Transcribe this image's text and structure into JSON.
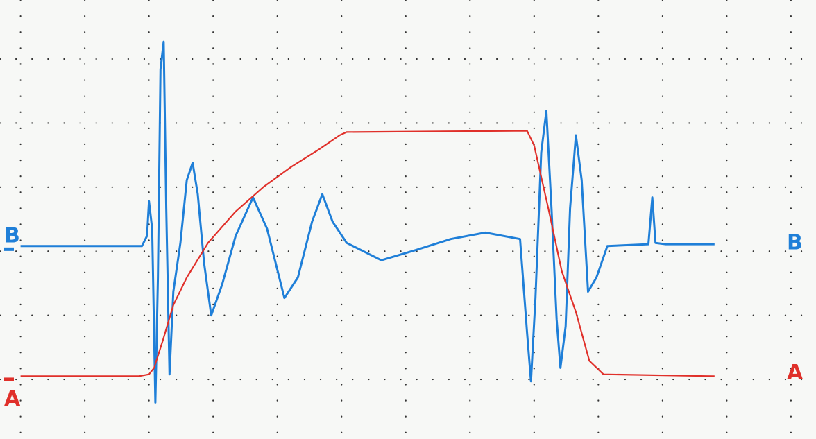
{
  "chart_data": {
    "type": "line",
    "xlim": [
      -0.32,
      12.39
    ],
    "ylim": [
      -0.93,
      5.92
    ],
    "xticks": [
      0,
      1,
      2,
      3,
      4,
      5,
      6,
      7,
      8,
      9,
      10,
      11,
      12
    ],
    "yticks": [
      0,
      1,
      2,
      3,
      4,
      5
    ],
    "grid": true,
    "series": [
      {
        "name": "B",
        "color": "#1f7fd8",
        "x": [
          0,
          1.89,
          1.97,
          2.0,
          2.05,
          2.1,
          2.14,
          2.18,
          2.23,
          2.27,
          2.32,
          2.38,
          2.49,
          2.59,
          2.68,
          2.76,
          2.86,
          2.97,
          3.14,
          3.35,
          3.62,
          3.84,
          4.11,
          4.32,
          4.54,
          4.7,
          4.86,
          5.08,
          5.62,
          6.16,
          6.7,
          7.24,
          7.78,
          7.89,
          7.95,
          8.02,
          8.11,
          8.19,
          8.27,
          8.35,
          8.41,
          8.49,
          8.56,
          8.65,
          8.74,
          8.84,
          8.97,
          9.14,
          9.78,
          9.84,
          9.89,
          10.05,
          10.81
        ],
        "values": [
          2.08,
          2.08,
          2.24,
          2.78,
          2.35,
          -0.36,
          1.59,
          4.84,
          5.27,
          2.67,
          0.08,
          1.37,
          2.13,
          3.11,
          3.38,
          2.89,
          1.81,
          1.0,
          1.48,
          2.24,
          2.84,
          2.35,
          1.27,
          1.59,
          2.46,
          2.89,
          2.46,
          2.13,
          1.86,
          2.02,
          2.19,
          2.29,
          2.19,
          0.73,
          -0.03,
          1.27,
          3.54,
          4.19,
          2.67,
          0.94,
          0.18,
          0.83,
          2.67,
          3.81,
          3.11,
          1.37,
          1.59,
          2.08,
          2.11,
          2.84,
          2.13,
          2.11,
          2.11
        ]
      },
      {
        "name": "A",
        "color": "#e0302a",
        "x": [
          0,
          1.84,
          2.0,
          2.08,
          2.22,
          2.38,
          2.59,
          2.92,
          3.35,
          3.78,
          4.22,
          4.65,
          4.97,
          5.08,
          7.89,
          8.0,
          8.22,
          8.43,
          8.65,
          8.86,
          9.08,
          10.81
        ],
        "values": [
          0.05,
          0.05,
          0.08,
          0.18,
          0.62,
          1.16,
          1.59,
          2.13,
          2.62,
          3.0,
          3.32,
          3.59,
          3.81,
          3.86,
          3.88,
          3.65,
          2.67,
          1.69,
          1.05,
          0.29,
          0.08,
          0.05
        ]
      }
    ]
  }
}
